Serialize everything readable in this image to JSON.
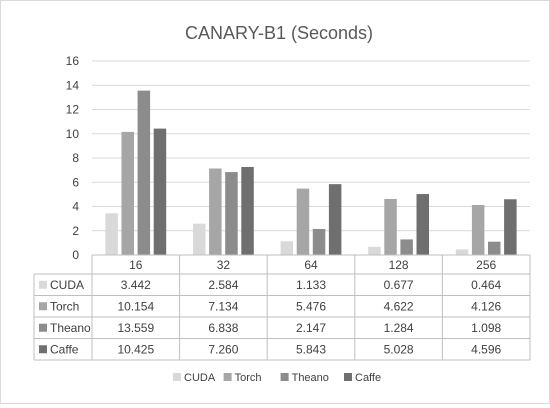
{
  "chart_data": {
    "type": "bar",
    "title": "CANARY-B1 (Seconds)",
    "categories": [
      "16",
      "32",
      "64",
      "128",
      "256"
    ],
    "series": [
      {
        "name": "CUDA",
        "color": "#d9d9d9",
        "values": [
          3.442,
          2.584,
          1.133,
          0.677,
          0.464
        ]
      },
      {
        "name": "Torch",
        "color": "#a6a6a6",
        "values": [
          10.154,
          7.134,
          5.476,
          4.622,
          4.126
        ]
      },
      {
        "name": "Theano",
        "color": "#8c8c8c",
        "values": [
          13.559,
          6.838,
          2.147,
          1.284,
          1.098
        ]
      },
      {
        "name": "Caffe",
        "color": "#6f6f6f",
        "values": [
          10.425,
          7.26,
          5.843,
          5.028,
          4.596
        ]
      }
    ],
    "table_values": [
      [
        "3.442",
        "2.584",
        "1.133",
        "0.677",
        "0.464"
      ],
      [
        "10.154",
        "7.134",
        "5.476",
        "4.622",
        "4.126"
      ],
      [
        "13.559",
        "6.838",
        "2.147",
        "1.284",
        "1.098"
      ],
      [
        "10.425",
        "7.260",
        "5.843",
        "5.028",
        "4.596"
      ]
    ],
    "ylim": [
      0,
      16
    ],
    "yticks": [
      "0",
      "2",
      "4",
      "6",
      "8",
      "10",
      "12",
      "14",
      "16"
    ],
    "grid": true,
    "legend": "bottom",
    "data_table": true
  }
}
